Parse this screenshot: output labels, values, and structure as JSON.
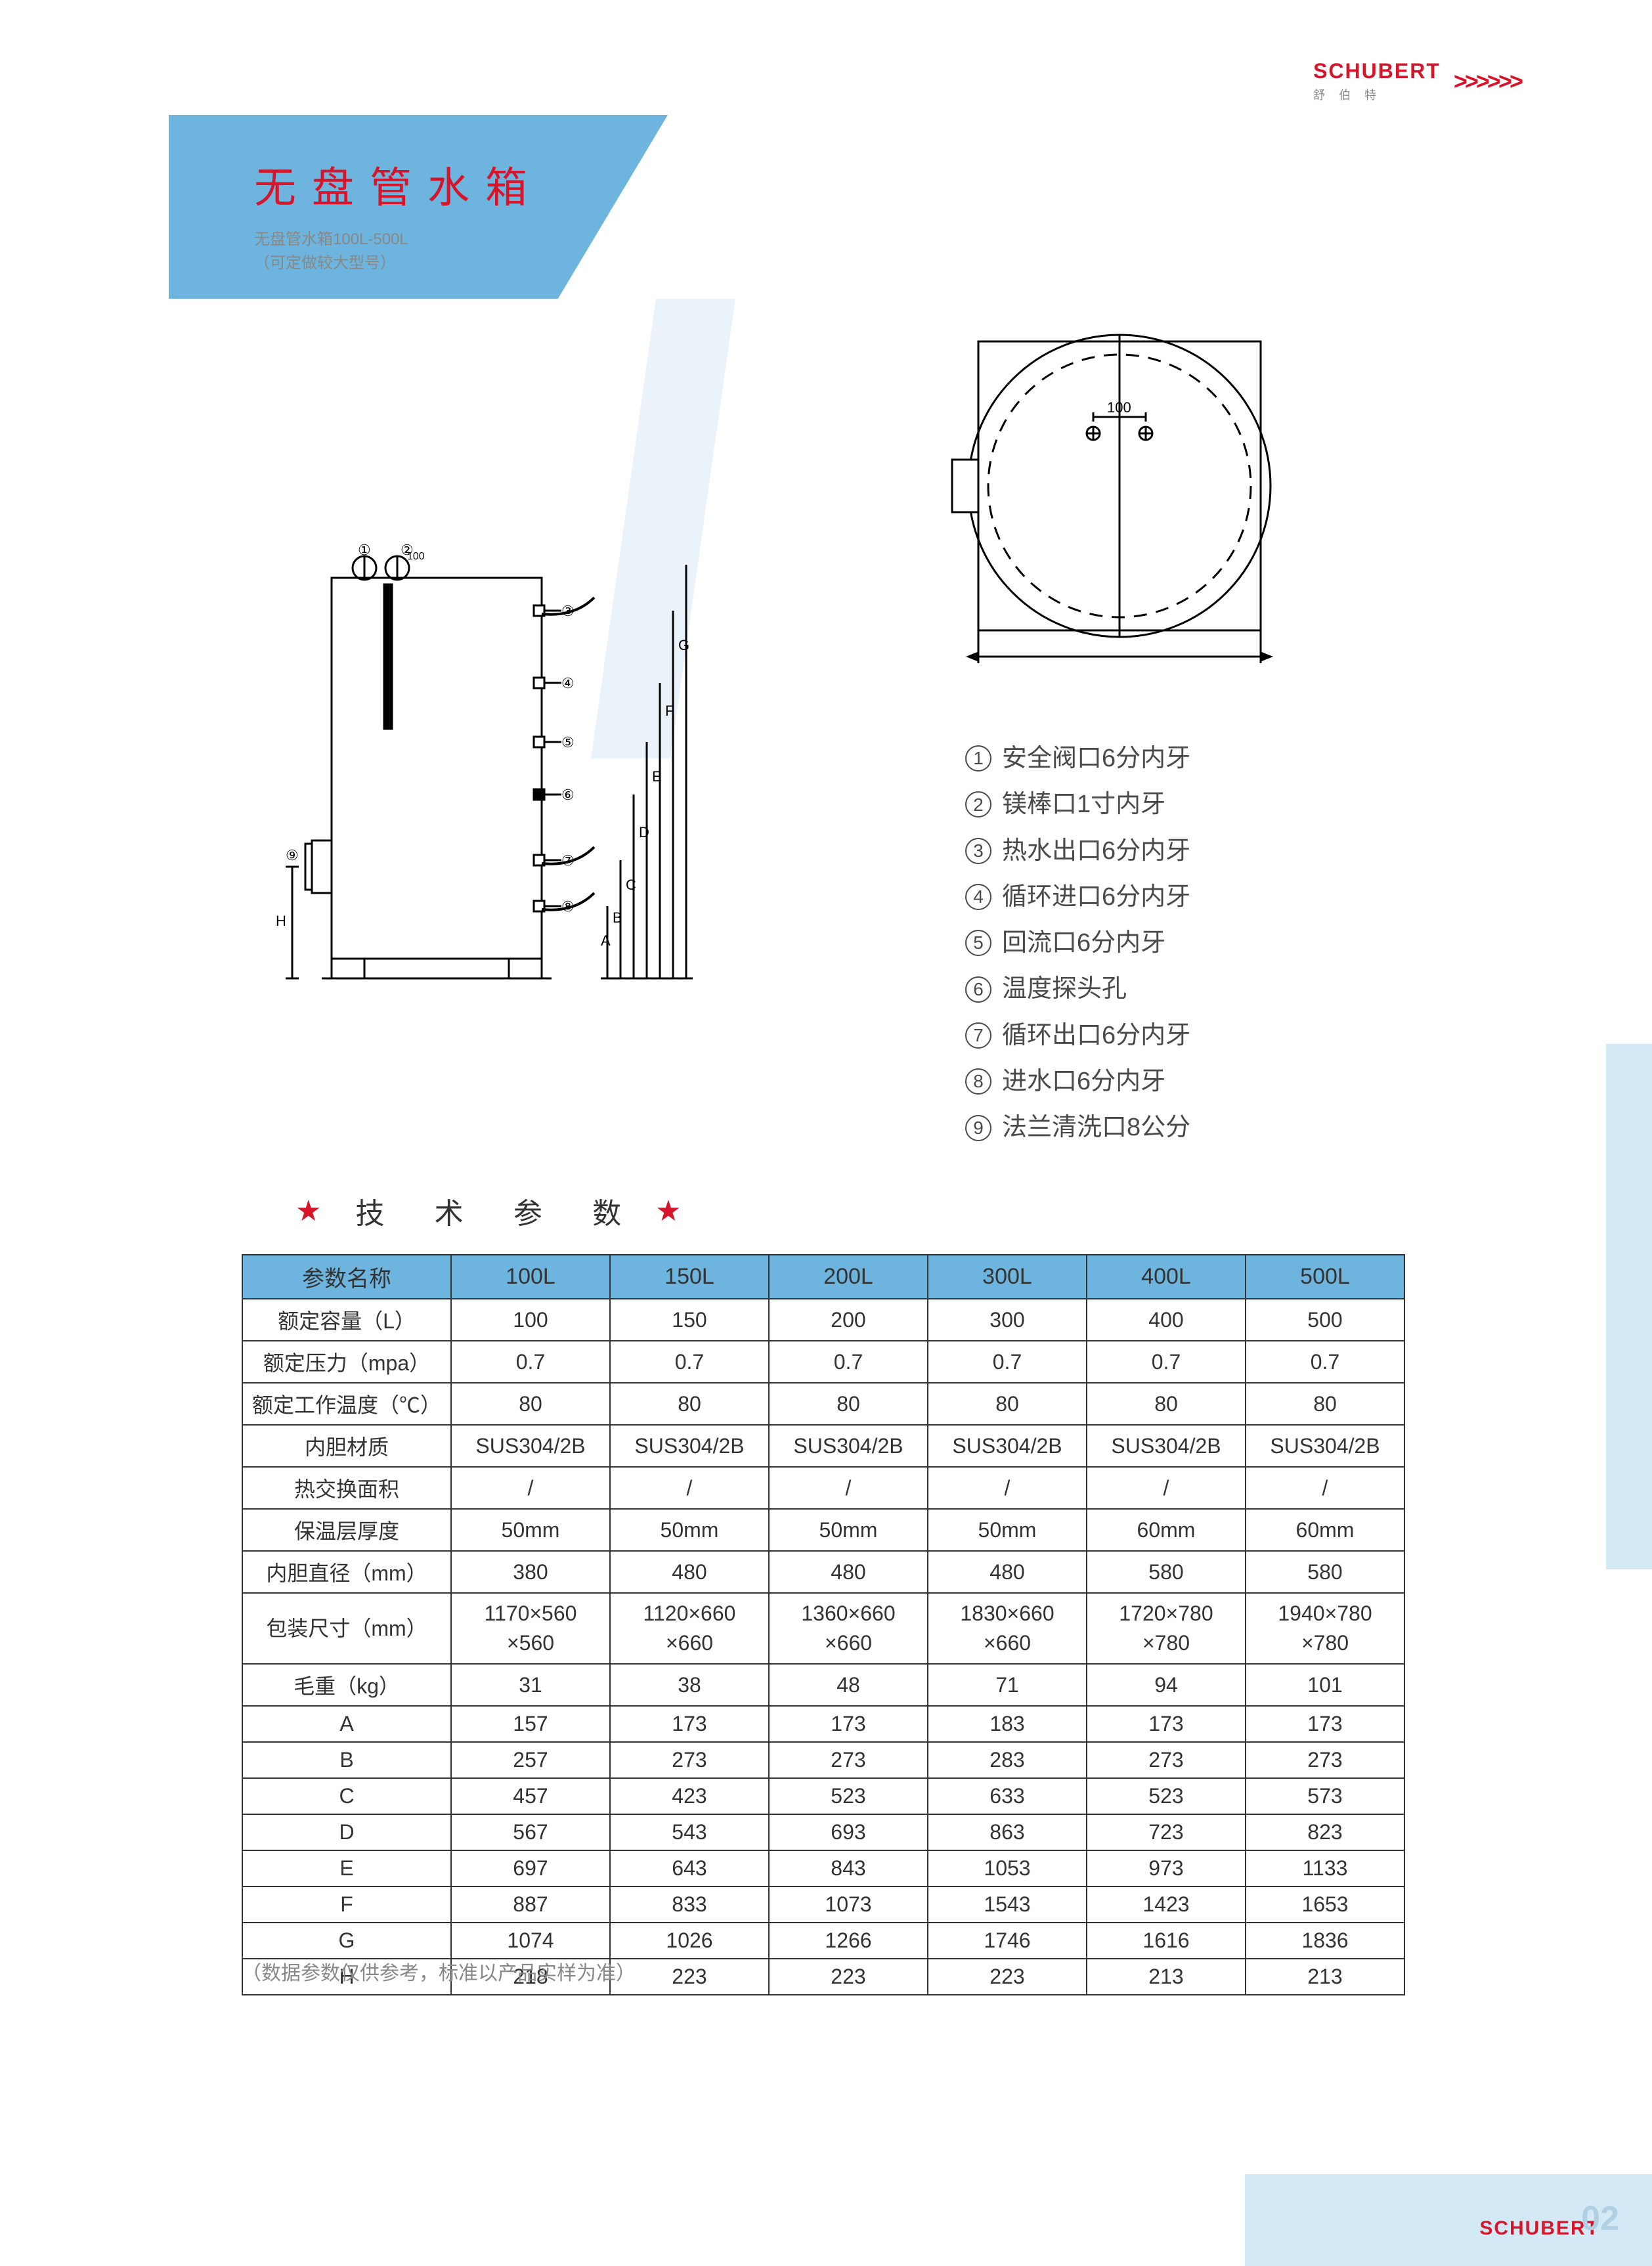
{
  "brand": {
    "name": "SCHUBERT",
    "name_cn": "舒 伯 特",
    "logo_color": "#d6152b",
    "chevron": ">>>>>>"
  },
  "title": {
    "main": "无盘管水箱",
    "sub1": "无盘管水箱100L-500L",
    "sub2": "（可定做较大型号）",
    "bg_color": "#6db4de",
    "text_color": "#d6152b"
  },
  "diagram_front": {
    "labels": [
      "①",
      "②",
      "③",
      "④",
      "⑤",
      "⑥",
      "⑦",
      "⑧",
      "⑨"
    ],
    "dim_labels": [
      "A",
      "B",
      "C",
      "D",
      "E",
      "F",
      "G",
      "H"
    ],
    "port_dim": "100",
    "stroke": "#000000",
    "stroke_width": 3
  },
  "diagram_top": {
    "port_dim": "100",
    "stroke": "#000000",
    "stroke_width": 3
  },
  "legend": {
    "items": [
      {
        "n": "1",
        "text": "安全阀口6分内牙"
      },
      {
        "n": "2",
        "text": "镁棒口1寸内牙"
      },
      {
        "n": "3",
        "text": "热水出口6分内牙"
      },
      {
        "n": "4",
        "text": "循环进口6分内牙"
      },
      {
        "n": "5",
        "text": "回流口6分内牙"
      },
      {
        "n": "6",
        "text": "温度探头孔"
      },
      {
        "n": "7",
        "text": "循环出口6分内牙"
      },
      {
        "n": "8",
        "text": "进水口6分内牙"
      },
      {
        "n": "9",
        "text": "法兰清洗口8公分"
      }
    ],
    "text_color": "#4a4a4a"
  },
  "section": {
    "title": "技 术 参 数",
    "star": "★",
    "star_color": "#d6152b"
  },
  "table": {
    "header_bg": "#6db4de",
    "border_color": "#333333",
    "columns": [
      "参数名称",
      "100L",
      "150L",
      "200L",
      "300L",
      "400L",
      "500L"
    ],
    "rows": [
      {
        "label": "额定容量（L）",
        "v": [
          "100",
          "150",
          "200",
          "300",
          "400",
          "500"
        ]
      },
      {
        "label": "额定压力（mpa）",
        "v": [
          "0.7",
          "0.7",
          "0.7",
          "0.7",
          "0.7",
          "0.7"
        ]
      },
      {
        "label": "额定工作温度（℃）",
        "v": [
          "80",
          "80",
          "80",
          "80",
          "80",
          "80"
        ]
      },
      {
        "label": "内胆材质",
        "v": [
          "SUS304/2B",
          "SUS304/2B",
          "SUS304/2B",
          "SUS304/2B",
          "SUS304/2B",
          "SUS304/2B"
        ]
      },
      {
        "label": "热交换面积",
        "v": [
          "/",
          "/",
          "/",
          "/",
          "/",
          "/"
        ]
      },
      {
        "label": "保温层厚度",
        "v": [
          "50mm",
          "50mm",
          "50mm",
          "50mm",
          "60mm",
          "60mm"
        ]
      },
      {
        "label": "内胆直径（mm）",
        "v": [
          "380",
          "480",
          "480",
          "480",
          "580",
          "580"
        ]
      },
      {
        "label": "包装尺寸（mm）",
        "two_line": true,
        "v": [
          "1170×560\n×560",
          "1120×660\n×660",
          "1360×660\n×660",
          "1830×660\n×660",
          "1720×780\n×780",
          "1940×780\n×780"
        ]
      },
      {
        "label": "毛重（kg）",
        "v": [
          "31",
          "38",
          "48",
          "71",
          "94",
          "101"
        ]
      },
      {
        "label": "A",
        "v": [
          "157",
          "173",
          "173",
          "183",
          "173",
          "173"
        ]
      },
      {
        "label": "B",
        "v": [
          "257",
          "273",
          "273",
          "283",
          "273",
          "273"
        ]
      },
      {
        "label": "C",
        "v": [
          "457",
          "423",
          "523",
          "633",
          "523",
          "573"
        ]
      },
      {
        "label": "D",
        "v": [
          "567",
          "543",
          "693",
          "863",
          "723",
          "823"
        ]
      },
      {
        "label": "E",
        "v": [
          "697",
          "643",
          "843",
          "1053",
          "973",
          "1133"
        ]
      },
      {
        "label": "F",
        "v": [
          "887",
          "833",
          "1073",
          "1543",
          "1423",
          "1653"
        ]
      },
      {
        "label": "G",
        "v": [
          "1074",
          "1026",
          "1266",
          "1746",
          "1616",
          "1836"
        ]
      },
      {
        "label": "H",
        "v": [
          "218",
          "223",
          "223",
          "223",
          "213",
          "213"
        ]
      }
    ],
    "note": "（数据参数仅供参考，标准以产品实样为准）"
  },
  "footer": {
    "page": "02"
  },
  "colors": {
    "accent_blue": "#6db4de",
    "light_blue": "#d4e9f6",
    "pale_blue": "#eaf3fa",
    "red": "#d6152b",
    "text": "#333333",
    "muted": "#888888"
  }
}
